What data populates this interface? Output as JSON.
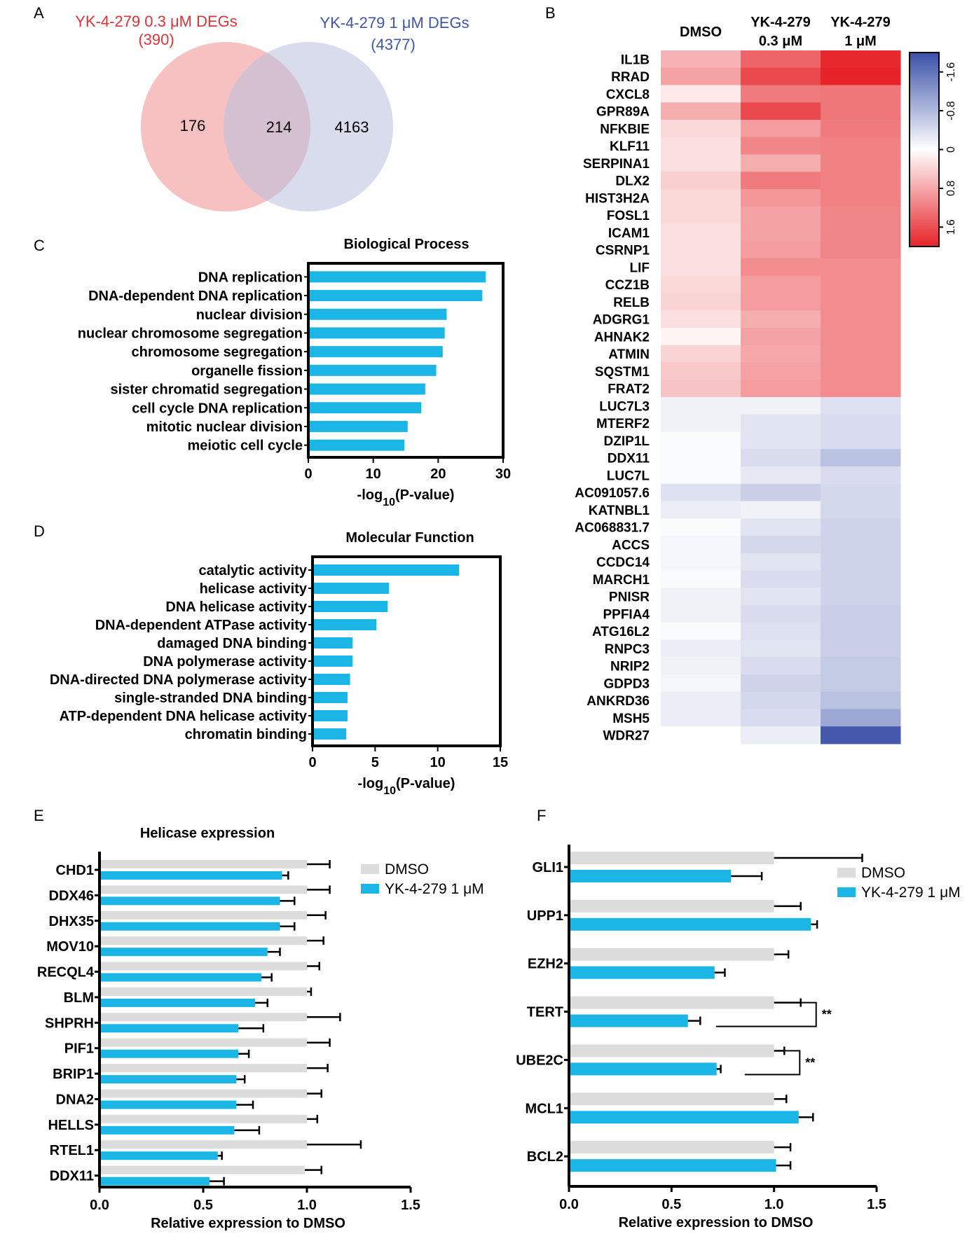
{
  "panel_labels": {
    "a": "A",
    "b": "B",
    "c": "C",
    "d": "D",
    "e": "E",
    "f": "F"
  },
  "colors": {
    "accent_blue": "#1BB6E6",
    "control_grey": "#DCDCDC",
    "venn_red": "#F4A6A6",
    "venn_blue": "#B9C0DE",
    "title_red": "#D9343A",
    "title_blue": "#3F57A8"
  },
  "chart_data": [
    {
      "id": "venn",
      "type": "venn",
      "left_title": "YK-4-279 0.3 μM DEGs",
      "left_total": "(390)",
      "right_title": "YK-4-279 1 μM DEGs",
      "right_total": "(4377)",
      "left_only": 176,
      "overlap": 214,
      "right_only": 4163
    },
    {
      "id": "heatmap",
      "type": "heatmap",
      "columns": [
        {
          "line1": "DMSO",
          "line2": ""
        },
        {
          "line1": "YK-4-279",
          "line2": "0.3 μM"
        },
        {
          "line1": "YK-4-279",
          "line2": "1 μM"
        }
      ],
      "rows": [
        "IL1B",
        "RRAD",
        "CXCL8",
        "GPR89A",
        "NFKBIE",
        "KLF11",
        "SERPINA1",
        "DLX2",
        "HIST3H2A",
        "FOSL1",
        "ICAM1",
        "CSRNP1",
        "LIF",
        "CCZ1B",
        "RELB",
        "ADGRG1",
        "AHNAK2",
        "ATMIN",
        "SQSTM1",
        "FRAT2",
        "LUC7L3",
        "MTERF2",
        "DZIP1L",
        "DDX11",
        "LUC7L",
        "AC091057.6",
        "KATNBL1",
        "AC068831.7",
        "ACCS",
        "CCDC14",
        "MARCH1",
        "PNISR",
        "PPFIA4",
        "ATG16L2",
        "RNPC3",
        "NRIP2",
        "GDPD3",
        "ANKRD36",
        "MSH5",
        "WDR27"
      ],
      "values": [
        [
          0.7,
          1.4,
          1.95
        ],
        [
          0.85,
          1.65,
          2.0
        ],
        [
          0.2,
          1.2,
          1.25
        ],
        [
          0.75,
          1.65,
          1.25
        ],
        [
          0.35,
          0.9,
          1.2
        ],
        [
          0.3,
          1.1,
          1.15
        ],
        [
          0.3,
          0.75,
          1.15
        ],
        [
          0.45,
          1.2,
          1.15
        ],
        [
          0.35,
          0.95,
          1.15
        ],
        [
          0.35,
          0.85,
          1.1
        ],
        [
          0.3,
          0.85,
          1.1
        ],
        [
          0.3,
          0.9,
          1.1
        ],
        [
          0.3,
          1.05,
          1.05
        ],
        [
          0.35,
          0.9,
          1.05
        ],
        [
          0.4,
          0.9,
          1.05
        ],
        [
          0.3,
          0.75,
          1.05
        ],
        [
          0.1,
          0.85,
          1.05
        ],
        [
          0.4,
          0.8,
          1.05
        ],
        [
          0.5,
          0.85,
          1.05
        ],
        [
          0.55,
          0.9,
          1.05
        ],
        [
          -0.15,
          -0.15,
          -0.35
        ],
        [
          -0.15,
          -0.3,
          -0.4
        ],
        [
          -0.05,
          -0.3,
          -0.4
        ],
        [
          -0.05,
          -0.4,
          -0.7
        ],
        [
          -0.05,
          -0.25,
          -0.4
        ],
        [
          -0.35,
          -0.55,
          -0.45
        ],
        [
          -0.2,
          -0.15,
          -0.45
        ],
        [
          -0.05,
          -0.3,
          -0.5
        ],
        [
          -0.1,
          -0.45,
          -0.5
        ],
        [
          -0.1,
          -0.3,
          -0.5
        ],
        [
          -0.05,
          -0.4,
          -0.5
        ],
        [
          -0.15,
          -0.3,
          -0.5
        ],
        [
          -0.15,
          -0.4,
          -0.55
        ],
        [
          -0.05,
          -0.35,
          -0.55
        ],
        [
          -0.2,
          -0.3,
          -0.55
        ],
        [
          -0.15,
          -0.4,
          -0.6
        ],
        [
          -0.1,
          -0.5,
          -0.6
        ],
        [
          -0.2,
          -0.45,
          -0.7
        ],
        [
          -0.2,
          -0.4,
          -1.0
        ],
        [
          0.0,
          -0.2,
          -1.9
        ]
      ],
      "colorbar": {
        "min": 2.0,
        "max": -2.0,
        "tick_labels": [
          "1.6",
          "0.8",
          "0",
          "-0.8",
          "-1.6"
        ],
        "tick_values": [
          1.6,
          0.8,
          0,
          -0.8,
          -1.6
        ]
      }
    },
    {
      "id": "bp",
      "type": "bar",
      "orientation": "horizontal",
      "title": "Biological Process",
      "categories": [
        "DNA replication",
        "DNA-dependent DNA replication",
        "nuclear division",
        "nuclear chromosome segregation",
        "chromosome segregation",
        "organelle fission",
        "sister chromatid segregation",
        "cell cycle DNA replication",
        "mitotic nuclear division",
        "meiotic cell cycle"
      ],
      "values": [
        27.3,
        26.8,
        21.3,
        21.0,
        20.7,
        19.7,
        18.0,
        17.4,
        15.3,
        14.8
      ],
      "xlim": [
        0,
        30
      ],
      "xticks": [
        0,
        10,
        20,
        30
      ],
      "xlabel_main": "-log",
      "xlabel_sub": "10",
      "xlabel_tail": "(P-value)"
    },
    {
      "id": "mf",
      "type": "bar",
      "orientation": "horizontal",
      "title": "Molecular Function",
      "categories": [
        "catalytic activity",
        "helicase activity",
        "DNA helicase activity",
        "DNA-dependent ATPase activity",
        "damaged DNA binding",
        "DNA polymerase activity",
        "DNA-directed DNA polymerase activity",
        "single-stranded DNA binding",
        "ATP-dependent DNA helicase activity",
        "chromatin binding"
      ],
      "values": [
        11.7,
        6.1,
        6.0,
        5.1,
        3.2,
        3.2,
        3.0,
        2.8,
        2.8,
        2.7
      ],
      "xlim": [
        0,
        15
      ],
      "xticks": [
        0,
        5,
        10,
        15
      ],
      "xlabel_main": "-log",
      "xlabel_sub": "10",
      "xlabel_tail": "(P-value)"
    },
    {
      "id": "helicase",
      "type": "bar",
      "orientation": "horizontal",
      "title": "Helicase expression",
      "categories": [
        "CHD1",
        "DDX46",
        "DHX35",
        "MOV10",
        "RECQL4",
        "BLM",
        "SHPRH",
        "PIF1",
        "BRIP1",
        "DNA2",
        "HELLS",
        "RTEL1",
        "DDX11"
      ],
      "series": [
        {
          "name": "DMSO",
          "values": [
            1.0,
            1.0,
            1.0,
            1.0,
            1.0,
            1.0,
            1.0,
            1.0,
            1.0,
            1.0,
            1.0,
            1.0,
            0.99
          ],
          "errors": [
            0.11,
            0.11,
            0.09,
            0.08,
            0.06,
            0.02,
            0.16,
            0.11,
            0.1,
            0.07,
            0.05,
            0.26,
            0.08
          ]
        },
        {
          "name": "YK-4-279 1 μM",
          "values": [
            0.88,
            0.87,
            0.87,
            0.81,
            0.78,
            0.75,
            0.67,
            0.67,
            0.66,
            0.66,
            0.65,
            0.57,
            0.53
          ],
          "errors": [
            0.03,
            0.07,
            0.07,
            0.06,
            0.05,
            0.06,
            0.12,
            0.05,
            0.04,
            0.08,
            0.12,
            0.02,
            0.07
          ]
        }
      ],
      "xlim": [
        0,
        1.5
      ],
      "xticks": [
        "0.0",
        "0.5",
        "1.0",
        "1.5"
      ],
      "xlabel": "Relative expression to DMSO",
      "legend_position": "top-right"
    },
    {
      "id": "targets",
      "type": "bar",
      "orientation": "horizontal",
      "categories": [
        "GLI1",
        "UPP1",
        "EZH2",
        "TERT",
        "UBE2C",
        "MCL1",
        "BCL2"
      ],
      "series": [
        {
          "name": "DMSO",
          "values": [
            1.0,
            1.0,
            1.0,
            1.0,
            1.0,
            1.0,
            1.0
          ],
          "errors": [
            0.43,
            0.13,
            0.07,
            0.13,
            0.05,
            0.06,
            0.08
          ]
        },
        {
          "name": "YK-4-279 1 μM",
          "values": [
            0.79,
            1.18,
            0.71,
            0.58,
            0.72,
            1.12,
            1.01
          ],
          "errors": [
            0.15,
            0.03,
            0.05,
            0.06,
            0.02,
            0.07,
            0.07
          ]
        }
      ],
      "significance": [
        {
          "category": "TERT",
          "label": "**"
        },
        {
          "category": "UBE2C",
          "label": "**"
        }
      ],
      "xlim": [
        0,
        1.5
      ],
      "xticks": [
        "0.0",
        "0.5",
        "1.0",
        "1.5"
      ],
      "xlabel": "Relative expression to DMSO",
      "legend_position": "top-right"
    }
  ]
}
